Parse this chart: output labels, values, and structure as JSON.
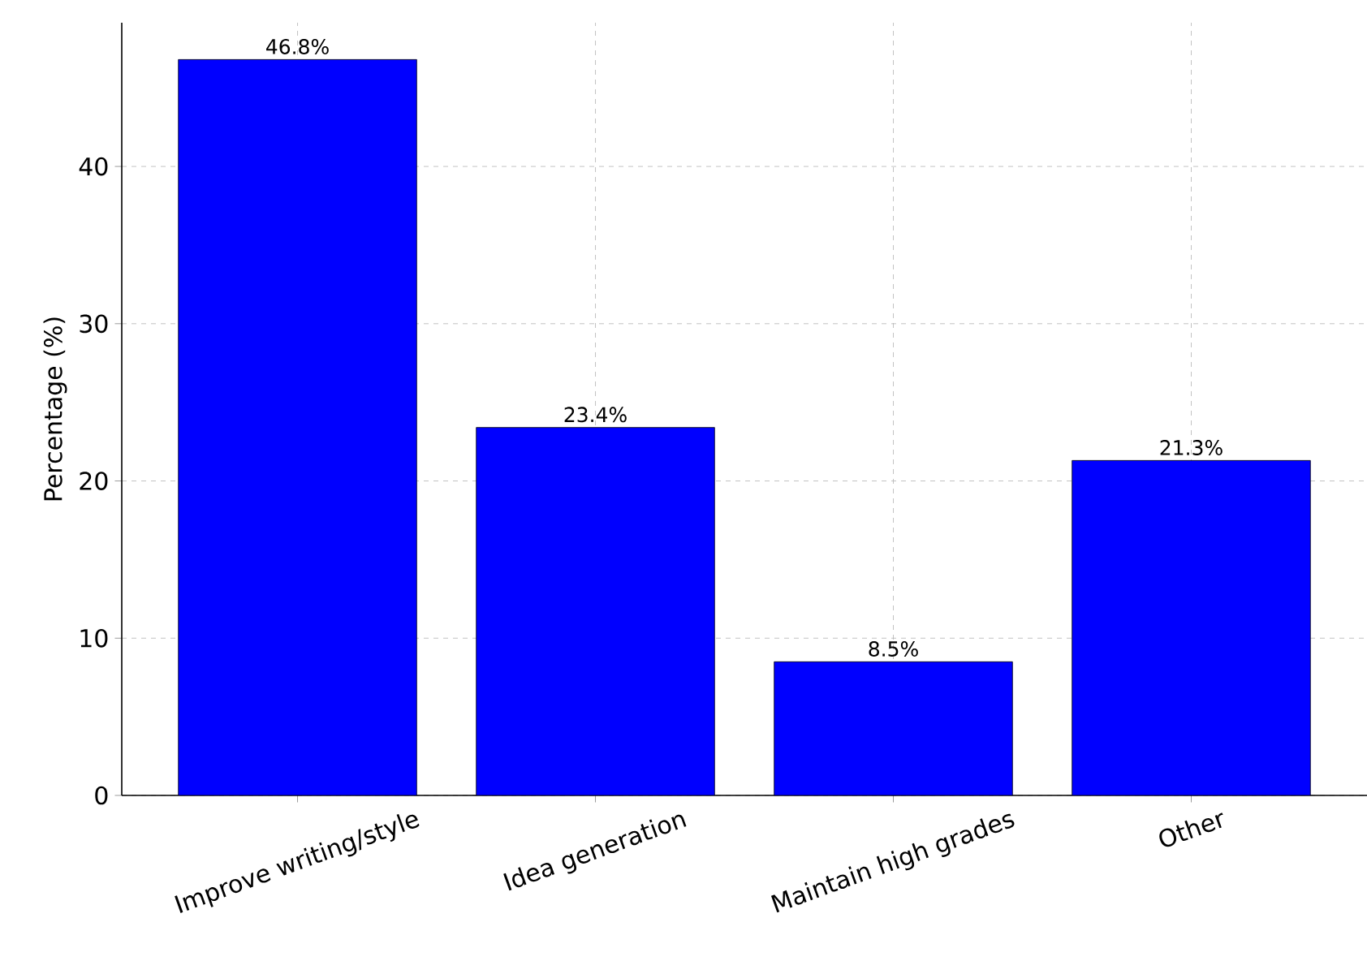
{
  "chart_data": {
    "type": "bar",
    "ylabel": "Percentage (%)",
    "categories": [
      "Improve writing/style",
      "Idea generation",
      "Maintain high grades",
      "Other"
    ],
    "values": [
      46.8,
      23.4,
      8.5,
      21.3
    ],
    "value_labels": [
      "46.8%",
      "23.4%",
      "8.5%",
      "21.3%"
    ],
    "color": "#0000ff",
    "ylim": [
      0,
      49.14
    ],
    "yticks": [
      0,
      10,
      20,
      30,
      40
    ],
    "grid": true
  }
}
